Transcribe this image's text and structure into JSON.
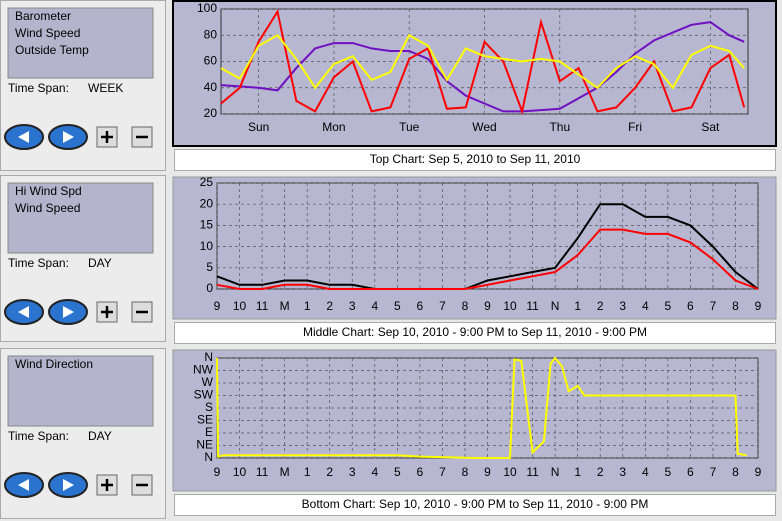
{
  "panels": [
    {
      "time_span_label": "Time Span:",
      "time_span": "WEEK"
    },
    {
      "time_span_label": "Time Span:",
      "time_span": "DAY"
    },
    {
      "time_span_label": "Time Span:",
      "time_span": "DAY"
    }
  ],
  "chart_data": [
    {
      "type": "line",
      "caption": "Top Chart:  Sep 5, 2010  to  Sep 11, 2010",
      "x": [
        0,
        0.25,
        0.5,
        0.75,
        1,
        1.25,
        1.5,
        1.75,
        2,
        2.25,
        2.5,
        2.75,
        3,
        3.25,
        3.5,
        3.75,
        4,
        4.25,
        4.5,
        4.75,
        5,
        5.25,
        5.5,
        5.75,
        6,
        6.25,
        6.5,
        6.75,
        6.95
      ],
      "series": [
        {
          "name": "Barometer",
          "color": "#7010c0",
          "values": [
            42,
            41,
            40,
            38,
            55,
            70,
            74,
            74,
            70,
            68,
            68,
            62,
            45,
            34,
            28,
            22,
            22,
            23,
            24,
            32,
            40,
            52,
            66,
            76,
            82,
            88,
            90,
            80,
            75
          ]
        },
        {
          "name": "Wind Speed",
          "color": "#ff0000",
          "values": [
            28,
            40,
            75,
            98,
            30,
            22,
            48,
            60,
            22,
            25,
            62,
            70,
            24,
            25,
            75,
            60,
            22,
            90,
            45,
            55,
            22,
            25,
            40,
            60,
            22,
            25,
            55,
            65,
            25
          ]
        },
        {
          "name": "Outside Temp",
          "color": "#ffff00",
          "values": [
            55,
            47,
            72,
            80,
            62,
            40,
            58,
            64,
            46,
            52,
            80,
            72,
            46,
            70,
            64,
            62,
            60,
            62,
            60,
            50,
            40,
            55,
            64,
            58,
            40,
            65,
            72,
            68,
            55
          ]
        }
      ],
      "xlim": [
        0,
        7
      ],
      "xticks": [
        {
          "value": 0.5,
          "label": "Sun"
        },
        {
          "value": 1.5,
          "label": "Mon"
        },
        {
          "value": 2.5,
          "label": "Tue"
        },
        {
          "value": 3.5,
          "label": "Wed"
        },
        {
          "value": 4.5,
          "label": "Thu"
        },
        {
          "value": 5.5,
          "label": "Fri"
        },
        {
          "value": 6.5,
          "label": "Sat"
        }
      ],
      "ylim": [
        20,
        100
      ],
      "yticks": [
        20,
        40,
        60,
        80,
        100
      ],
      "grid": true
    },
    {
      "type": "line",
      "caption": "Middle Chart:  Sep 10, 2010 - 9:00 PM  to  Sep 11, 2010 - 9:00 PM",
      "x": [
        0,
        1,
        2,
        3,
        4,
        5,
        6,
        7,
        8,
        9,
        10,
        11,
        12,
        13,
        14,
        15,
        16,
        17,
        18,
        19,
        20,
        21,
        22,
        23,
        24
      ],
      "series": [
        {
          "name": "Hi Wind Spd",
          "color": "#000000",
          "values": [
            3,
            1,
            1,
            2,
            2,
            1,
            1,
            0,
            0,
            0,
            0,
            0,
            2,
            3,
            4,
            5,
            12,
            20,
            20,
            17,
            17,
            15,
            10,
            4,
            0
          ]
        },
        {
          "name": "Wind Speed",
          "color": "#ff0000",
          "values": [
            1,
            0,
            0,
            1,
            1,
            0,
            0,
            0,
            0,
            0,
            0,
            0,
            1,
            2,
            3,
            4,
            8,
            14,
            14,
            13,
            13,
            11,
            7,
            2,
            0
          ]
        }
      ],
      "xlim": [
        0,
        24
      ],
      "xticks": [
        {
          "value": 0,
          "label": "9"
        },
        {
          "value": 1,
          "label": "10"
        },
        {
          "value": 2,
          "label": "11"
        },
        {
          "value": 3,
          "label": "M"
        },
        {
          "value": 4,
          "label": "1"
        },
        {
          "value": 5,
          "label": "2"
        },
        {
          "value": 6,
          "label": "3"
        },
        {
          "value": 7,
          "label": "4"
        },
        {
          "value": 8,
          "label": "5"
        },
        {
          "value": 9,
          "label": "6"
        },
        {
          "value": 10,
          "label": "7"
        },
        {
          "value": 11,
          "label": "8"
        },
        {
          "value": 12,
          "label": "9"
        },
        {
          "value": 13,
          "label": "10"
        },
        {
          "value": 14,
          "label": "11"
        },
        {
          "value": 15,
          "label": "N"
        },
        {
          "value": 16,
          "label": "1"
        },
        {
          "value": 17,
          "label": "2"
        },
        {
          "value": 18,
          "label": "3"
        },
        {
          "value": 19,
          "label": "4"
        },
        {
          "value": 20,
          "label": "5"
        },
        {
          "value": 21,
          "label": "6"
        },
        {
          "value": 22,
          "label": "7"
        },
        {
          "value": 23,
          "label": "8"
        },
        {
          "value": 24,
          "label": "9"
        }
      ],
      "ylim": [
        0,
        25
      ],
      "yticks": [
        0,
        5,
        10,
        15,
        20,
        25
      ],
      "grid": true
    },
    {
      "type": "line",
      "caption": "Bottom Chart:  Sep 10, 2010 - 9:00 PM  to  Sep 11, 2010 - 9:00 PM",
      "x": [
        0,
        0.05,
        0.3,
        1,
        2,
        3,
        4,
        5,
        6,
        7,
        8,
        9,
        11.5,
        12,
        13,
        13.2,
        13.5,
        14,
        14.5,
        14.8,
        15,
        15.3,
        15.6,
        16,
        16.3,
        17,
        18,
        19,
        20,
        21,
        22,
        23,
        23.1,
        23.5
      ],
      "series": [
        {
          "name": "Wind Direction",
          "color": "#ffff00",
          "values": [
            360,
            5,
            10,
            10,
            10,
            10,
            10,
            10,
            10,
            10,
            10,
            5,
            0,
            0,
            0,
            355,
            350,
            20,
            60,
            340,
            360,
            330,
            240,
            260,
            225,
            225,
            225,
            225,
            225,
            225,
            225,
            225,
            15,
            10
          ]
        }
      ],
      "xlim": [
        0,
        24
      ],
      "xticks": [
        {
          "value": 0,
          "label": "9"
        },
        {
          "value": 1,
          "label": "10"
        },
        {
          "value": 2,
          "label": "11"
        },
        {
          "value": 3,
          "label": "M"
        },
        {
          "value": 4,
          "label": "1"
        },
        {
          "value": 5,
          "label": "2"
        },
        {
          "value": 6,
          "label": "3"
        },
        {
          "value": 7,
          "label": "4"
        },
        {
          "value": 8,
          "label": "5"
        },
        {
          "value": 9,
          "label": "6"
        },
        {
          "value": 10,
          "label": "7"
        },
        {
          "value": 11,
          "label": "8"
        },
        {
          "value": 12,
          "label": "9"
        },
        {
          "value": 13,
          "label": "10"
        },
        {
          "value": 14,
          "label": "11"
        },
        {
          "value": 15,
          "label": "N"
        },
        {
          "value": 16,
          "label": "1"
        },
        {
          "value": 17,
          "label": "2"
        },
        {
          "value": 18,
          "label": "3"
        },
        {
          "value": 19,
          "label": "4"
        },
        {
          "value": 20,
          "label": "5"
        },
        {
          "value": 21,
          "label": "6"
        },
        {
          "value": 22,
          "label": "7"
        },
        {
          "value": 23,
          "label": "8"
        },
        {
          "value": 24,
          "label": "9"
        }
      ],
      "ylim": [
        0,
        360
      ],
      "yticks": [
        {
          "value": 0,
          "label": "N"
        },
        {
          "value": 45,
          "label": "NE"
        },
        {
          "value": 90,
          "label": "E"
        },
        {
          "value": 135,
          "label": "SE"
        },
        {
          "value": 180,
          "label": "S"
        },
        {
          "value": 225,
          "label": "SW"
        },
        {
          "value": 270,
          "label": "W"
        },
        {
          "value": 315,
          "label": "NW"
        },
        {
          "value": 360,
          "label": "N"
        }
      ],
      "grid": true
    }
  ]
}
